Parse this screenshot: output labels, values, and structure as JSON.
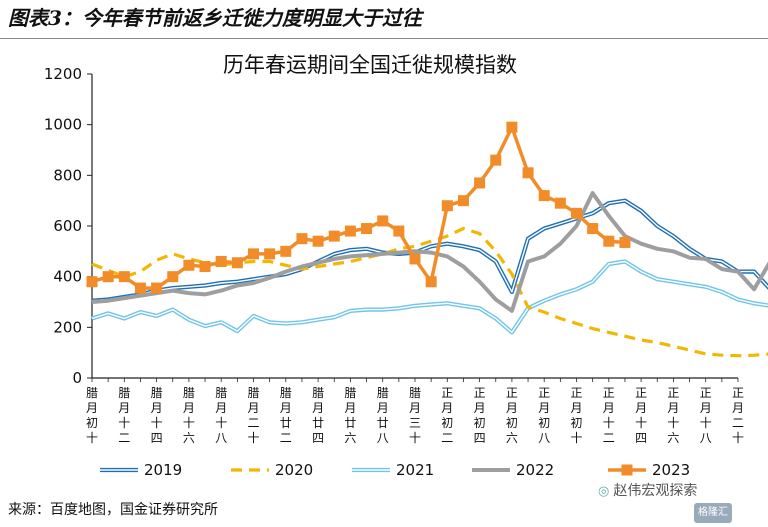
{
  "figure": {
    "title": "图表3：今年春节前返乡迁徙力度明显大于过往",
    "source": "来源：百度地图，国金证券研究所",
    "watermark": "赵伟宏观探索",
    "logo_text": "格隆汇"
  },
  "chart_data": {
    "type": "line",
    "title": "历年春运期间全国迁徙规模指数",
    "xlabel": "",
    "ylabel": "",
    "ylim": [
      0,
      1200
    ],
    "yticks": [
      0,
      200,
      400,
      600,
      800,
      1000,
      1200
    ],
    "grid": false,
    "legend_position": "bottom",
    "x_tick_labels": [
      "腊月初十",
      "腊月十二",
      "腊月十四",
      "腊月十六",
      "腊月十八",
      "腊月二十",
      "腊月廿二",
      "腊月廿四",
      "腊月廿六",
      "腊月廿八",
      "腊月三十",
      "正月初二",
      "正月初四",
      "正月初六",
      "正月初八",
      "正月初十",
      "正月十二",
      "正月十四",
      "正月十六",
      "正月十八",
      "正月二十"
    ],
    "x_count": 41,
    "series": [
      {
        "name": "2019",
        "color": "#1f6fb2",
        "style": "double",
        "values": [
          305,
          310,
          320,
          330,
          345,
          355,
          360,
          365,
          375,
          380,
          390,
          400,
          410,
          430,
          460,
          490,
          505,
          510,
          495,
          490,
          495,
          520,
          530,
          520,
          505,
          460,
          340,
          550,
          590,
          610,
          630,
          650,
          690,
          700,
          660,
          600,
          560,
          510,
          470,
          460,
          420,
          420,
          350,
          400,
          420,
          430,
          450,
          470,
          480
        ]
      },
      {
        "name": "2020",
        "color": "#f2b705",
        "style": "dashed",
        "values": [
          450,
          425,
          400,
          420,
          465,
          490,
          470,
          455,
          445,
          455,
          460,
          460,
          445,
          430,
          440,
          450,
          460,
          475,
          490,
          510,
          520,
          540,
          560,
          590,
          570,
          500,
          410,
          280,
          260,
          235,
          215,
          195,
          180,
          165,
          150,
          140,
          125,
          110,
          95,
          90,
          88,
          90,
          95,
          100,
          110,
          105,
          100,
          88,
          80,
          80,
          82
        ]
      },
      {
        "name": "2021",
        "color": "#70c5e8",
        "style": "double",
        "values": [
          235,
          255,
          235,
          260,
          245,
          270,
          230,
          205,
          220,
          185,
          245,
          220,
          215,
          220,
          230,
          240,
          265,
          270,
          270,
          275,
          285,
          290,
          295,
          285,
          275,
          235,
          180,
          275,
          305,
          330,
          350,
          380,
          450,
          460,
          420,
          390,
          380,
          370,
          360,
          340,
          310,
          295,
          285,
          290,
          380,
          395,
          380,
          350,
          320,
          310
        ]
      },
      {
        "name": "2022",
        "color": "#9e9e9e",
        "style": "solid-thick",
        "values": [
          300,
          305,
          315,
          325,
          335,
          345,
          335,
          330,
          345,
          365,
          375,
          395,
          420,
          440,
          455,
          470,
          480,
          485,
          490,
          495,
          500,
          495,
          480,
          440,
          380,
          310,
          265,
          460,
          480,
          530,
          600,
          730,
          640,
          560,
          530,
          510,
          500,
          475,
          470,
          430,
          420,
          350,
          460,
          450,
          420,
          450,
          470,
          440
        ]
      },
      {
        "name": "2023",
        "color": "#f28c28",
        "style": "markers",
        "values": [
          380,
          400,
          400,
          355,
          355,
          400,
          445,
          440,
          460,
          455,
          490,
          490,
          500,
          550,
          540,
          560,
          580,
          590,
          620,
          580,
          470,
          380,
          680,
          700,
          770,
          860,
          990,
          810,
          720,
          690,
          650,
          590,
          540,
          535
        ]
      }
    ]
  }
}
